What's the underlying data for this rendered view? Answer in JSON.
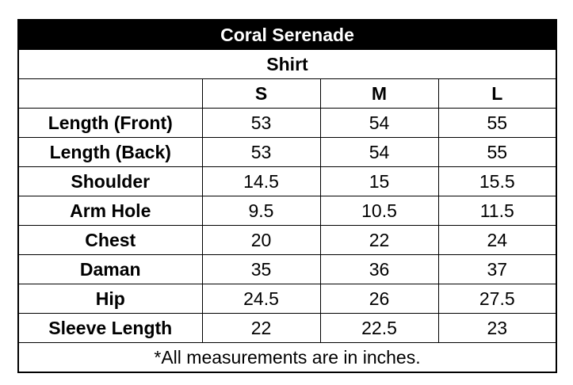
{
  "table": {
    "title": "Coral Serenade",
    "subtitle": "Shirt",
    "columns": [
      "S",
      "M",
      "L"
    ],
    "rows": [
      {
        "label": "Length (Front)",
        "values": [
          53,
          54,
          55
        ]
      },
      {
        "label": "Length (Back)",
        "values": [
          53,
          54,
          55
        ]
      },
      {
        "label": "Shoulder",
        "values": [
          14.5,
          15,
          15.5
        ]
      },
      {
        "label": "Arm Hole",
        "values": [
          9.5,
          10.5,
          11.5
        ]
      },
      {
        "label": "Chest",
        "values": [
          20,
          22,
          24
        ]
      },
      {
        "label": "Daman",
        "values": [
          35,
          36,
          37
        ]
      },
      {
        "label": "Hip",
        "values": [
          24.5,
          26,
          27.5
        ]
      },
      {
        "label": "Sleeve Length",
        "values": [
          22,
          22.5,
          23
        ]
      }
    ],
    "footnote": "*All measurements are in inches."
  }
}
